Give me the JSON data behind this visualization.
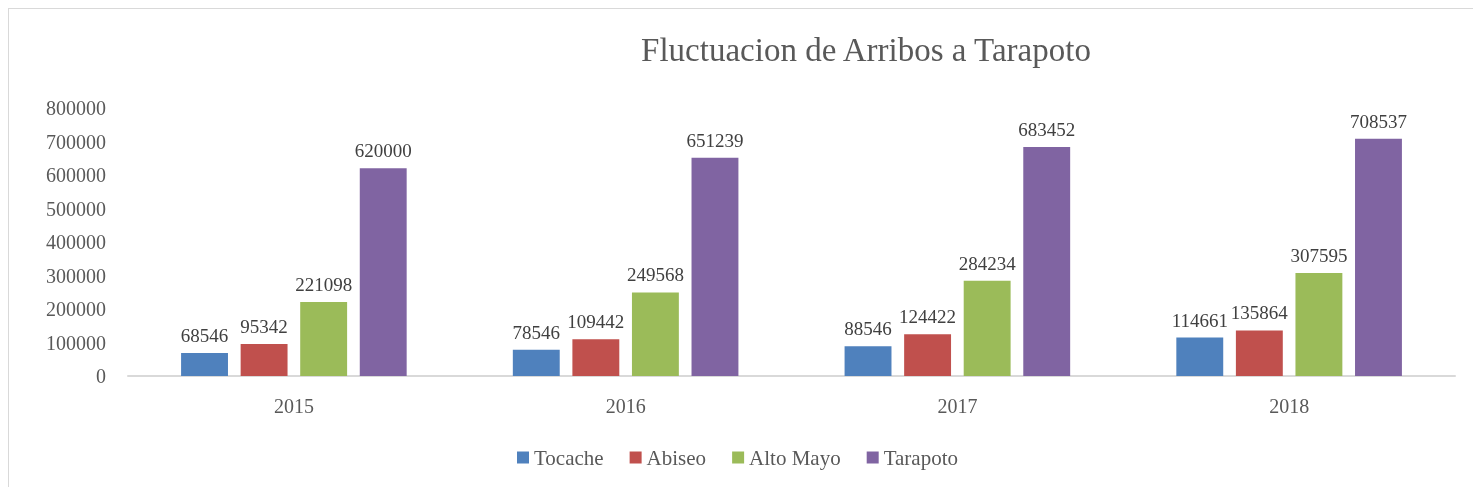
{
  "chart_data": {
    "type": "bar",
    "title": "Fluctuacion de Arribos a Tarapoto",
    "categories": [
      "2015",
      "2016",
      "2017",
      "2018"
    ],
    "series": [
      {
        "name": "Tocache",
        "color": "#4f81bd",
        "values": [
          68546,
          78546,
          88546,
          114661
        ]
      },
      {
        "name": "Abiseo",
        "color": "#c0504d",
        "values": [
          95342,
          109442,
          124422,
          135864
        ]
      },
      {
        "name": "Alto Mayo",
        "color": "#9bbb59",
        "values": [
          221098,
          249568,
          284234,
          307595
        ]
      },
      {
        "name": "Tarapoto",
        "color": "#8064a2",
        "values": [
          620000,
          651239,
          683452,
          708537
        ]
      }
    ],
    "ylim": [
      0,
      800000
    ],
    "yticks": [
      0,
      100000,
      200000,
      300000,
      400000,
      500000,
      600000,
      700000,
      800000
    ],
    "grid": false,
    "legend": "bottom",
    "data_labels": true
  }
}
